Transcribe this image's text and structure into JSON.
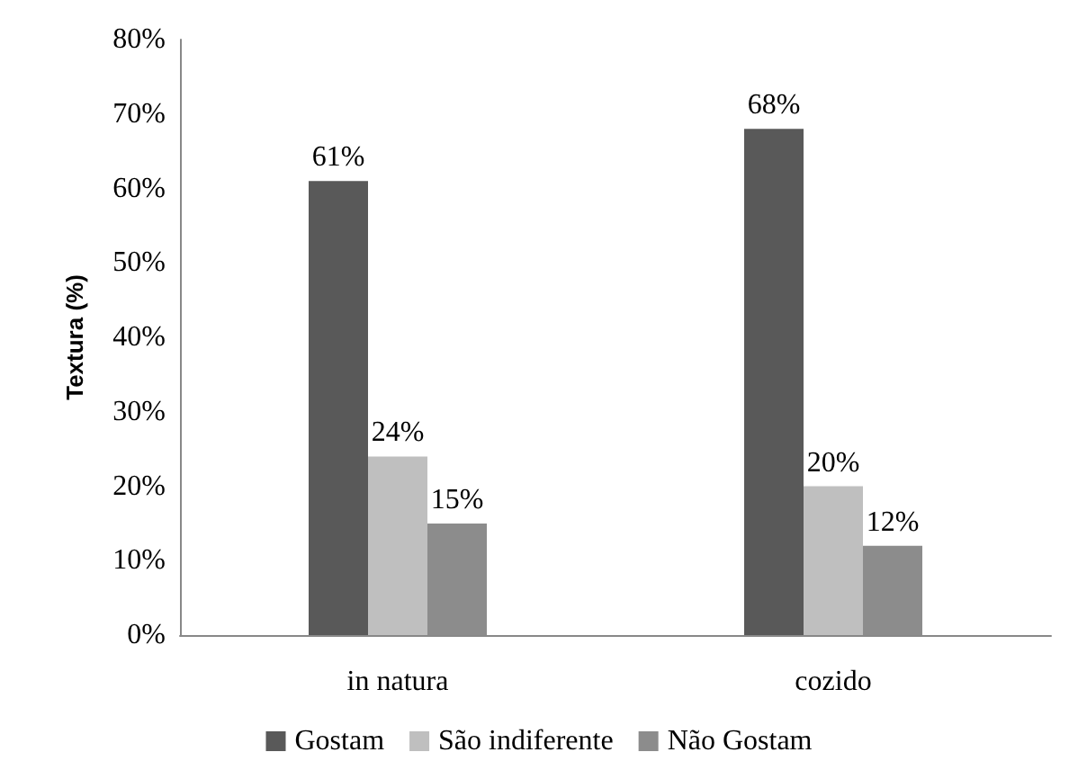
{
  "chart_data": {
    "type": "bar",
    "ylabel": "Textura (%)",
    "categories": [
      "in natura",
      "cozido"
    ],
    "series": [
      {
        "name": "Gostam",
        "color": "#595959",
        "values": [
          61,
          68
        ],
        "value_labels": [
          "61%",
          "68%"
        ]
      },
      {
        "name": "São indiferente",
        "color": "#bfbfbf",
        "values": [
          24,
          20
        ],
        "value_labels": [
          "24%",
          "20%"
        ]
      },
      {
        "name": "Não Gostam",
        "color": "#8c8c8c",
        "values": [
          15,
          12
        ],
        "value_labels": [
          "15%",
          "12%"
        ]
      }
    ],
    "ylim": [
      0,
      80
    ],
    "yticks": [
      {
        "value": 0,
        "label": "0%"
      },
      {
        "value": 10,
        "label": "10%"
      },
      {
        "value": 20,
        "label": "20%"
      },
      {
        "value": 30,
        "label": "30%"
      },
      {
        "value": 40,
        "label": "40%"
      },
      {
        "value": 50,
        "label": "50%"
      },
      {
        "value": 60,
        "label": "60%"
      },
      {
        "value": 70,
        "label": "70%"
      },
      {
        "value": 80,
        "label": "80%"
      }
    ],
    "grid": false,
    "legend": "bottom"
  }
}
